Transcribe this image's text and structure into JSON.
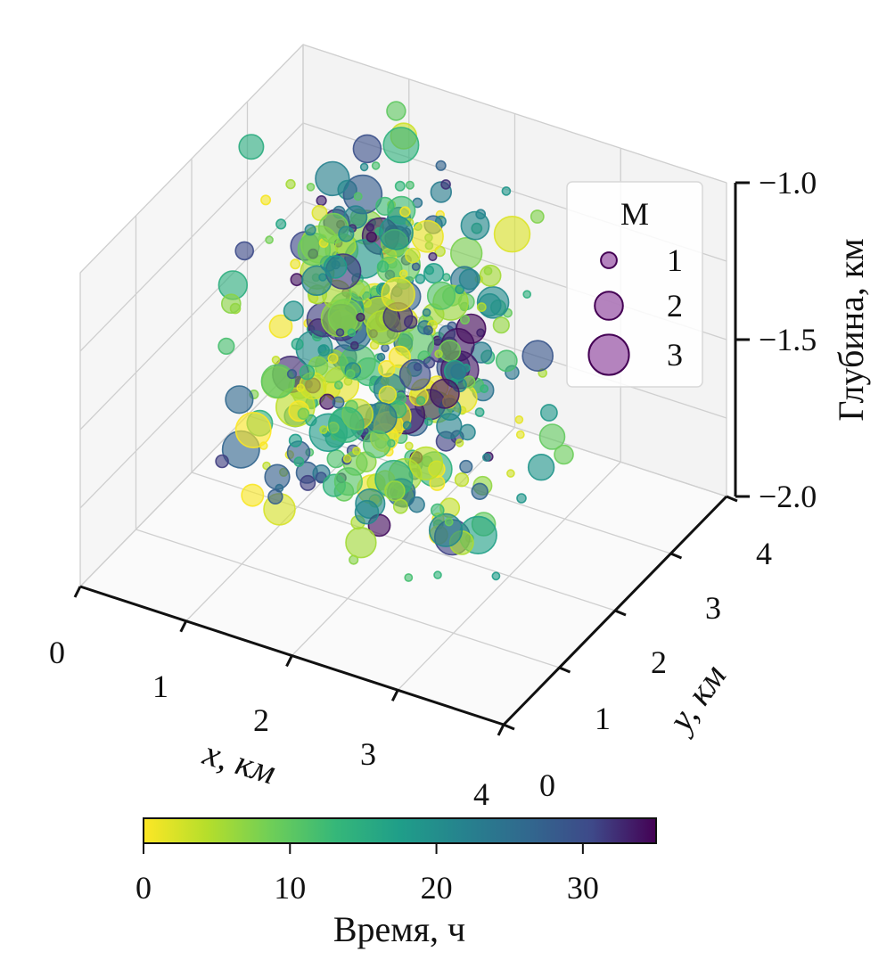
{
  "chart_data": {
    "type": "scatter",
    "projection": "3d",
    "grid": true,
    "xlabel": "x, км",
    "ylabel": "y, км",
    "zlabel": "Глубина, км",
    "xlim": [
      0,
      4
    ],
    "ylim": [
      0,
      4
    ],
    "zlim": [
      -2.0,
      -1.0
    ],
    "x_ticks": [
      "0",
      "1",
      "2",
      "3",
      "4"
    ],
    "y_ticks": [
      "0",
      "1",
      "2",
      "3",
      "4"
    ],
    "z_ticks": [
      "−2.0",
      "−1.5",
      "−1.0"
    ],
    "legend": {
      "title": "M",
      "placement": "right",
      "entries": [
        {
          "label": "1",
          "magnitude": 1
        },
        {
          "label": "2",
          "magnitude": 2
        },
        {
          "label": "3",
          "magnitude": 3
        }
      ]
    },
    "colorbar": {
      "label": "Время, ч",
      "colormap": "viridis",
      "range": [
        0,
        35
      ],
      "ticks": [
        "0",
        "10",
        "20",
        "30"
      ],
      "tick_values": [
        0,
        10,
        20,
        30
      ]
    },
    "point_distribution": {
      "count": 420,
      "x_center": 1.6,
      "x_spread": 0.55,
      "y_center": 2.4,
      "y_spread": 0.55,
      "z_min": -2.0,
      "z_max": -1.0,
      "magnitude_range": [
        0.3,
        3.0
      ],
      "time_range": [
        0,
        35
      ]
    },
    "points": [
      {
        "x": 1.3,
        "y": 2.6,
        "z": -1.08,
        "m": 3.0,
        "t": 28
      },
      {
        "x": 1.5,
        "y": 2.5,
        "z": -1.42,
        "m": 2.7,
        "t": 26
      },
      {
        "x": 1.0,
        "y": 2.3,
        "z": -1.55,
        "m": 2.8,
        "t": 20
      },
      {
        "x": 2.6,
        "y": 2.2,
        "z": -1.95,
        "m": 2.9,
        "t": 17
      },
      {
        "x": 2.4,
        "y": 2.0,
        "z": -1.92,
        "m": 2.5,
        "t": 21
      },
      {
        "x": 0.6,
        "y": 2.4,
        "z": -1.72,
        "m": 2.4,
        "t": 6
      },
      {
        "x": 0.3,
        "y": 2.5,
        "z": -1.02,
        "m": 1.8,
        "t": 15
      },
      {
        "x": 1.0,
        "y": 2.7,
        "z": -1.22,
        "m": 1.9,
        "t": 33
      },
      {
        "x": 2.5,
        "y": 2.6,
        "z": -1.3,
        "m": 1.6,
        "t": 20
      },
      {
        "x": 3.2,
        "y": 2.6,
        "z": -1.7,
        "m": 1.3,
        "t": 9
      }
    ]
  }
}
